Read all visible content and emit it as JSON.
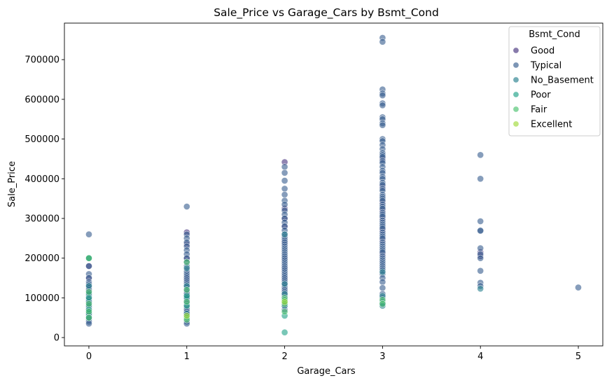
{
  "chart_data": {
    "type": "scatter",
    "title": "Sale_Price vs Garage_Cars by Bsmt_Cond",
    "xlabel": "Garage_Cars",
    "ylabel": "Sale_Price",
    "xlim": [
      -0.25,
      5.25
    ],
    "ylim": [
      -21000,
      792000
    ],
    "xticks": [
      0,
      1,
      2,
      3,
      4,
      5
    ],
    "yticks": [
      0,
      100000,
      200000,
      300000,
      400000,
      500000,
      600000,
      700000
    ],
    "grid": false,
    "legend": {
      "title": "Bsmt_Cond",
      "placement": "top-right",
      "entries": [
        "Good",
        "Typical",
        "No_Basement",
        "Poor",
        "Fair",
        "Excellent"
      ]
    },
    "series": [
      {
        "name": "Good",
        "color": "#46327e",
        "points": [
          [
            0,
            180000
          ],
          [
            0,
            150000
          ],
          [
            0,
            120000
          ],
          [
            0,
            95000
          ],
          [
            1,
            265000
          ],
          [
            1,
            235000
          ],
          [
            1,
            200000
          ],
          [
            1,
            150000
          ],
          [
            1,
            110000
          ],
          [
            2,
            442000
          ],
          [
            2,
            325000
          ],
          [
            2,
            300000
          ],
          [
            2,
            280000
          ],
          [
            2,
            240000
          ],
          [
            2,
            200000
          ],
          [
            2,
            175000
          ],
          [
            2,
            150000
          ],
          [
            3,
            450000
          ],
          [
            3,
            380000
          ],
          [
            3,
            340000
          ],
          [
            3,
            320000
          ],
          [
            3,
            300000
          ],
          [
            3,
            270000
          ],
          [
            3,
            245000
          ],
          [
            3,
            210000
          ],
          [
            4,
            215000
          ],
          [
            4,
            205000
          ]
        ]
      },
      {
        "name": "Typical",
        "color": "#365c8d",
        "points": [
          [
            0,
            260000
          ],
          [
            0,
            200000
          ],
          [
            0,
            180000
          ],
          [
            0,
            160000
          ],
          [
            0,
            150000
          ],
          [
            0,
            140000
          ],
          [
            0,
            135000
          ],
          [
            0,
            130000
          ],
          [
            0,
            125000
          ],
          [
            0,
            120000
          ],
          [
            0,
            115000
          ],
          [
            0,
            110000
          ],
          [
            0,
            105000
          ],
          [
            0,
            100000
          ],
          [
            0,
            95000
          ],
          [
            0,
            90000
          ],
          [
            0,
            85000
          ],
          [
            0,
            80000
          ],
          [
            0,
            75000
          ],
          [
            0,
            70000
          ],
          [
            0,
            65000
          ],
          [
            0,
            60000
          ],
          [
            0,
            55000
          ],
          [
            0,
            50000
          ],
          [
            0,
            45000
          ],
          [
            0,
            40000
          ],
          [
            0,
            35000
          ],
          [
            1,
            330000
          ],
          [
            1,
            260000
          ],
          [
            1,
            250000
          ],
          [
            1,
            240000
          ],
          [
            1,
            230000
          ],
          [
            1,
            220000
          ],
          [
            1,
            210000
          ],
          [
            1,
            200000
          ],
          [
            1,
            190000
          ],
          [
            1,
            180000
          ],
          [
            1,
            170000
          ],
          [
            1,
            165000
          ],
          [
            1,
            160000
          ],
          [
            1,
            155000
          ],
          [
            1,
            150000
          ],
          [
            1,
            145000
          ],
          [
            1,
            140000
          ],
          [
            1,
            135000
          ],
          [
            1,
            130000
          ],
          [
            1,
            125000
          ],
          [
            1,
            120000
          ],
          [
            1,
            115000
          ],
          [
            1,
            110000
          ],
          [
            1,
            105000
          ],
          [
            1,
            100000
          ],
          [
            1,
            95000
          ],
          [
            1,
            90000
          ],
          [
            1,
            85000
          ],
          [
            1,
            80000
          ],
          [
            1,
            75000
          ],
          [
            1,
            70000
          ],
          [
            1,
            65000
          ],
          [
            1,
            60000
          ],
          [
            1,
            55000
          ],
          [
            1,
            50000
          ],
          [
            1,
            40000
          ],
          [
            1,
            35000
          ],
          [
            2,
            430000
          ],
          [
            2,
            415000
          ],
          [
            2,
            395000
          ],
          [
            2,
            375000
          ],
          [
            2,
            360000
          ],
          [
            2,
            345000
          ],
          [
            2,
            335000
          ],
          [
            2,
            320000
          ],
          [
            2,
            310000
          ],
          [
            2,
            300000
          ],
          [
            2,
            290000
          ],
          [
            2,
            280000
          ],
          [
            2,
            270000
          ],
          [
            2,
            260000
          ],
          [
            2,
            255000
          ],
          [
            2,
            250000
          ],
          [
            2,
            245000
          ],
          [
            2,
            240000
          ],
          [
            2,
            235000
          ],
          [
            2,
            230000
          ],
          [
            2,
            225000
          ],
          [
            2,
            220000
          ],
          [
            2,
            215000
          ],
          [
            2,
            210000
          ],
          [
            2,
            205000
          ],
          [
            2,
            200000
          ],
          [
            2,
            195000
          ],
          [
            2,
            190000
          ],
          [
            2,
            185000
          ],
          [
            2,
            180000
          ],
          [
            2,
            175000
          ],
          [
            2,
            170000
          ],
          [
            2,
            165000
          ],
          [
            2,
            160000
          ],
          [
            2,
            155000
          ],
          [
            2,
            150000
          ],
          [
            2,
            145000
          ],
          [
            2,
            140000
          ],
          [
            2,
            135000
          ],
          [
            2,
            130000
          ],
          [
            2,
            125000
          ],
          [
            2,
            120000
          ],
          [
            2,
            115000
          ],
          [
            2,
            110000
          ],
          [
            2,
            105000
          ],
          [
            2,
            100000
          ],
          [
            2,
            90000
          ],
          [
            2,
            80000
          ],
          [
            2,
            70000
          ],
          [
            3,
            755000
          ],
          [
            3,
            745000
          ],
          [
            3,
            625000
          ],
          [
            3,
            615000
          ],
          [
            3,
            610000
          ],
          [
            3,
            590000
          ],
          [
            3,
            585000
          ],
          [
            3,
            555000
          ],
          [
            3,
            550000
          ],
          [
            3,
            540000
          ],
          [
            3,
            535000
          ],
          [
            3,
            500000
          ],
          [
            3,
            495000
          ],
          [
            3,
            485000
          ],
          [
            3,
            475000
          ],
          [
            3,
            465000
          ],
          [
            3,
            460000
          ],
          [
            3,
            455000
          ],
          [
            3,
            445000
          ],
          [
            3,
            440000
          ],
          [
            3,
            430000
          ],
          [
            3,
            420000
          ],
          [
            3,
            415000
          ],
          [
            3,
            405000
          ],
          [
            3,
            400000
          ],
          [
            3,
            390000
          ],
          [
            3,
            385000
          ],
          [
            3,
            375000
          ],
          [
            3,
            370000
          ],
          [
            3,
            360000
          ],
          [
            3,
            355000
          ],
          [
            3,
            350000
          ],
          [
            3,
            345000
          ],
          [
            3,
            335000
          ],
          [
            3,
            330000
          ],
          [
            3,
            325000
          ],
          [
            3,
            315000
          ],
          [
            3,
            310000
          ],
          [
            3,
            305000
          ],
          [
            3,
            295000
          ],
          [
            3,
            290000
          ],
          [
            3,
            285000
          ],
          [
            3,
            280000
          ],
          [
            3,
            275000
          ],
          [
            3,
            265000
          ],
          [
            3,
            260000
          ],
          [
            3,
            255000
          ],
          [
            3,
            250000
          ],
          [
            3,
            240000
          ],
          [
            3,
            235000
          ],
          [
            3,
            230000
          ],
          [
            3,
            225000
          ],
          [
            3,
            220000
          ],
          [
            3,
            215000
          ],
          [
            3,
            205000
          ],
          [
            3,
            200000
          ],
          [
            3,
            195000
          ],
          [
            3,
            190000
          ],
          [
            3,
            185000
          ],
          [
            3,
            180000
          ],
          [
            3,
            175000
          ],
          [
            3,
            170000
          ],
          [
            3,
            160000
          ],
          [
            3,
            150000
          ],
          [
            3,
            140000
          ],
          [
            3,
            125000
          ],
          [
            3,
            110000
          ],
          [
            3,
            100000
          ],
          [
            4,
            460000
          ],
          [
            4,
            400000
          ],
          [
            4,
            293000
          ],
          [
            4,
            270000
          ],
          [
            4,
            269000
          ],
          [
            4,
            225000
          ],
          [
            4,
            210000
          ],
          [
            4,
            200000
          ],
          [
            4,
            168000
          ],
          [
            4,
            138000
          ],
          [
            4,
            130000
          ],
          [
            5,
            126000
          ]
        ]
      },
      {
        "name": "No_Basement",
        "color": "#277f8e",
        "points": [
          [
            0,
            130000
          ],
          [
            0,
            110000
          ],
          [
            0,
            90000
          ],
          [
            0,
            80000
          ],
          [
            0,
            60000
          ],
          [
            0,
            50000
          ],
          [
            1,
            175000
          ],
          [
            1,
            130000
          ],
          [
            1,
            100000
          ],
          [
            1,
            60000
          ],
          [
            2,
            260000
          ],
          [
            2,
            135000
          ],
          [
            2,
            110000
          ],
          [
            2,
            90000
          ],
          [
            2,
            80000
          ],
          [
            3,
            165000
          ],
          [
            3,
            105000
          ],
          [
            3,
            90000
          ],
          [
            3,
            85000
          ],
          [
            3,
            80000
          ],
          [
            4,
            123000
          ]
        ]
      },
      {
        "name": "Poor",
        "color": "#1fa187",
        "points": [
          [
            0,
            200000
          ],
          [
            0,
            100000
          ],
          [
            0,
            70000
          ],
          [
            1,
            105000
          ],
          [
            1,
            80000
          ],
          [
            2,
            55000
          ],
          [
            2,
            13000
          ]
        ]
      },
      {
        "name": "Fair",
        "color": "#4ac16d",
        "points": [
          [
            0,
            200000
          ],
          [
            0,
            115000
          ],
          [
            0,
            85000
          ],
          [
            0,
            65000
          ],
          [
            0,
            50000
          ],
          [
            1,
            190000
          ],
          [
            1,
            120000
          ],
          [
            1,
            90000
          ],
          [
            1,
            50000
          ],
          [
            1,
            45000
          ],
          [
            2,
            100000
          ],
          [
            2,
            95000
          ],
          [
            2,
            85000
          ],
          [
            2,
            65000
          ],
          [
            3,
            95000
          ],
          [
            3,
            85000
          ]
        ]
      },
      {
        "name": "Excellent",
        "color": "#a0da39",
        "points": [
          [
            1,
            55000
          ],
          [
            2,
            90000
          ]
        ]
      }
    ]
  }
}
